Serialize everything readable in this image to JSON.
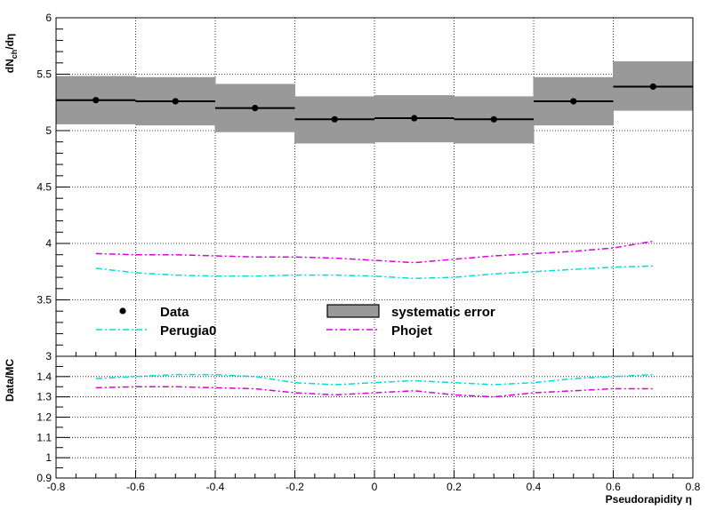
{
  "chart_data": [
    {
      "type": "line",
      "panel": "top",
      "xlabel": "Pseudorapidity η",
      "ylabel": "dN_ch/dη",
      "xlim": [
        -0.8,
        0.8
      ],
      "ylim": [
        3.0,
        6.0
      ],
      "x_ticks": [
        "-0.8",
        "-0.6",
        "-0.4",
        "-0.2",
        "0",
        "0.2",
        "0.4",
        "0.6",
        "0.8"
      ],
      "y_ticks": [
        "3",
        "3.5",
        "4",
        "4.5",
        "5",
        "5.5",
        "6"
      ],
      "grid": true,
      "legend": {
        "placement": "bottom",
        "entries": [
          {
            "label": "Data",
            "marker": "dot",
            "color": "#000000"
          },
          {
            "label": "systematic error",
            "marker": "box",
            "color": "#999999"
          },
          {
            "label": "Perugia0",
            "marker": "dash-dot",
            "color": "#00dddd"
          },
          {
            "label": "Phojet",
            "marker": "dash-dot",
            "color": "#dd00dd"
          }
        ]
      },
      "data": {
        "name": "Data",
        "bin_edges": [
          -0.8,
          -0.6,
          -0.4,
          -0.2,
          0.0,
          0.2,
          0.4,
          0.6,
          0.8
        ],
        "x": [
          -0.7,
          -0.5,
          -0.3,
          -0.1,
          0.1,
          0.3,
          0.5,
          0.7
        ],
        "y": [
          5.27,
          5.26,
          5.2,
          5.1,
          5.11,
          5.1,
          5.26,
          5.39
        ],
        "syst_low": [
          5.06,
          5.05,
          4.99,
          4.89,
          4.9,
          4.89,
          5.05,
          5.18
        ],
        "syst_high": [
          5.48,
          5.47,
          5.41,
          5.3,
          5.31,
          5.3,
          5.47,
          5.61
        ],
        "color": "#000000",
        "band_color": "#999999"
      },
      "series": [
        {
          "name": "Perugia0",
          "color": "#00dddd",
          "x": [
            -0.7,
            -0.6,
            -0.5,
            -0.4,
            -0.3,
            -0.2,
            -0.1,
            0.0,
            0.1,
            0.2,
            0.3,
            0.4,
            0.5,
            0.6,
            0.7
          ],
          "y": [
            3.78,
            3.74,
            3.72,
            3.71,
            3.71,
            3.72,
            3.72,
            3.71,
            3.69,
            3.7,
            3.73,
            3.75,
            3.77,
            3.79,
            3.8
          ]
        },
        {
          "name": "Phojet",
          "color": "#dd00dd",
          "x": [
            -0.7,
            -0.6,
            -0.5,
            -0.4,
            -0.3,
            -0.2,
            -0.1,
            0.0,
            0.1,
            0.2,
            0.3,
            0.4,
            0.5,
            0.6,
            0.7
          ],
          "y": [
            3.91,
            3.9,
            3.9,
            3.89,
            3.88,
            3.88,
            3.87,
            3.85,
            3.83,
            3.86,
            3.89,
            3.91,
            3.93,
            3.96,
            4.02
          ]
        }
      ]
    },
    {
      "type": "line",
      "panel": "bottom",
      "xlabel": "Pseudorapidity η",
      "ylabel": "Data/MC",
      "xlim": [
        -0.8,
        0.8
      ],
      "ylim": [
        0.9,
        1.5
      ],
      "x_ticks": [
        "-0.8",
        "-0.6",
        "-0.4",
        "-0.2",
        "0",
        "0.2",
        "0.4",
        "0.6",
        "0.8"
      ],
      "y_ticks": [
        "0.9",
        "1",
        "1.1",
        "1.2",
        "1.3",
        "1.4"
      ],
      "grid": true,
      "series": [
        {
          "name": "Perugia0",
          "color": "#00dddd",
          "x": [
            -0.7,
            -0.6,
            -0.5,
            -0.4,
            -0.3,
            -0.2,
            -0.1,
            0.0,
            0.1,
            0.2,
            0.3,
            0.4,
            0.5,
            0.6,
            0.7
          ],
          "y": [
            1.39,
            1.4,
            1.41,
            1.41,
            1.4,
            1.37,
            1.36,
            1.37,
            1.38,
            1.37,
            1.36,
            1.37,
            1.39,
            1.4,
            1.41
          ]
        },
        {
          "name": "Phojet",
          "color": "#dd00dd",
          "x": [
            -0.7,
            -0.6,
            -0.5,
            -0.4,
            -0.3,
            -0.2,
            -0.1,
            0.0,
            0.1,
            0.2,
            0.3,
            0.4,
            0.5,
            0.6,
            0.7
          ],
          "y": [
            1.345,
            1.35,
            1.35,
            1.345,
            1.34,
            1.32,
            1.31,
            1.32,
            1.33,
            1.31,
            1.3,
            1.32,
            1.33,
            1.34,
            1.34
          ]
        }
      ]
    }
  ]
}
